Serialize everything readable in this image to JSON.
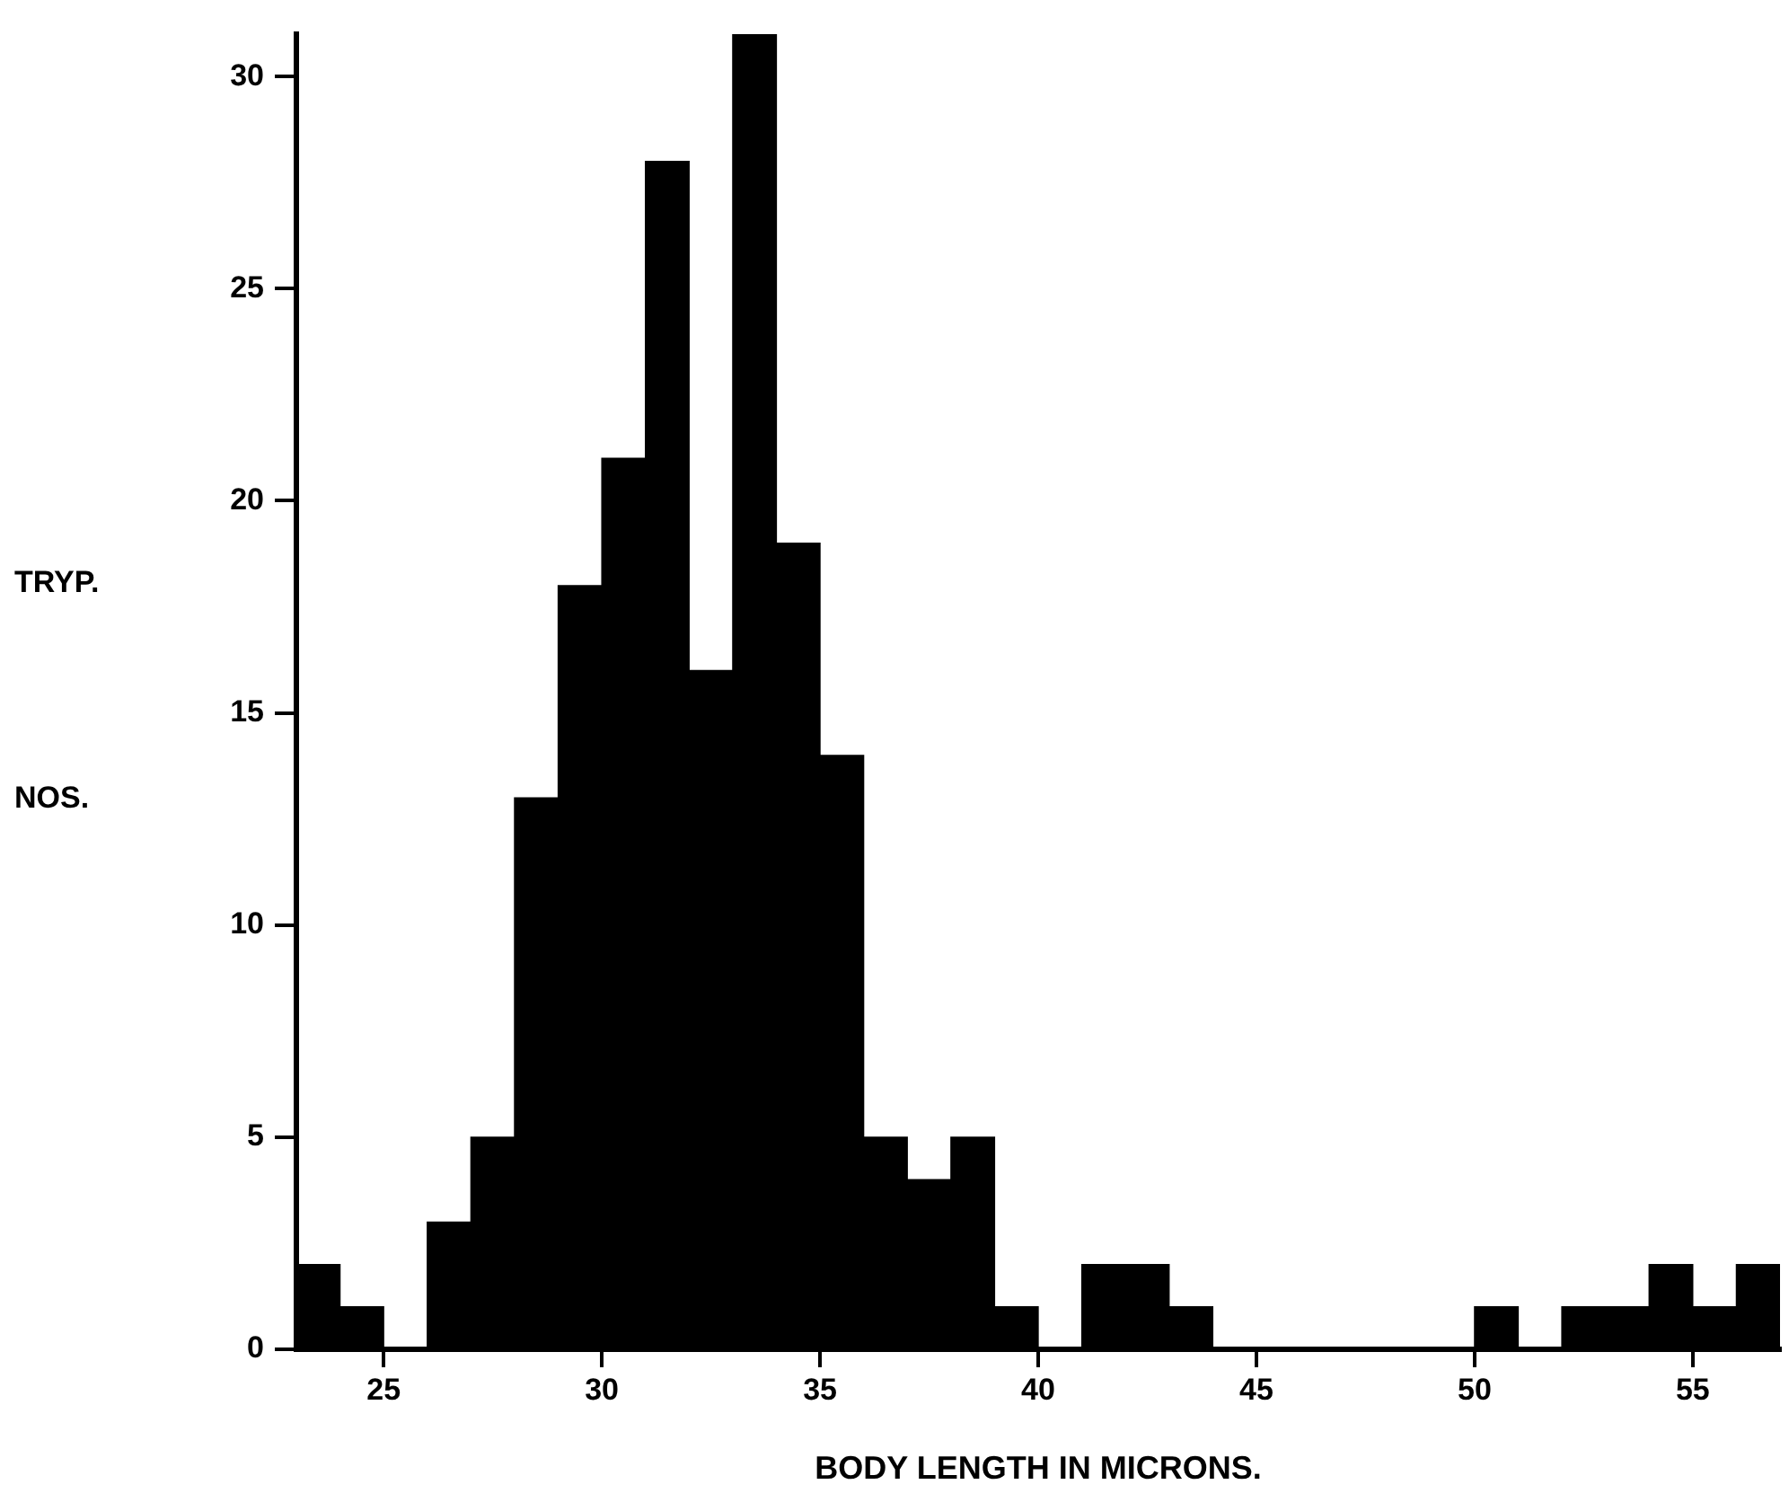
{
  "chart_data": {
    "type": "histogram",
    "xlabel": "BODY LENGTH IN MICRONS.",
    "ylabel": "TRYP. NOS.",
    "bins": [
      23,
      24,
      25,
      26,
      27,
      28,
      29,
      30,
      31,
      32,
      33,
      34,
      35,
      36,
      37,
      38,
      39,
      40,
      41,
      42,
      43,
      44,
      45,
      46,
      47,
      48,
      49,
      50,
      51,
      52,
      53,
      54,
      55,
      56,
      57
    ],
    "values": [
      2,
      1,
      0,
      3,
      5,
      13,
      18,
      21,
      28,
      16,
      31,
      19,
      14,
      5,
      4,
      5,
      1,
      0,
      2,
      2,
      1,
      0,
      0,
      0,
      0,
      0,
      0,
      1,
      0,
      1,
      1,
      2,
      1,
      2
    ],
    "color": "#000000",
    "xlim": [
      23,
      57
    ],
    "xticks": [
      25,
      30,
      35,
      40,
      45,
      50,
      55
    ],
    "ylim": [
      0,
      31
    ],
    "yticks": [
      0,
      5,
      10,
      15,
      20,
      25,
      30
    ]
  }
}
